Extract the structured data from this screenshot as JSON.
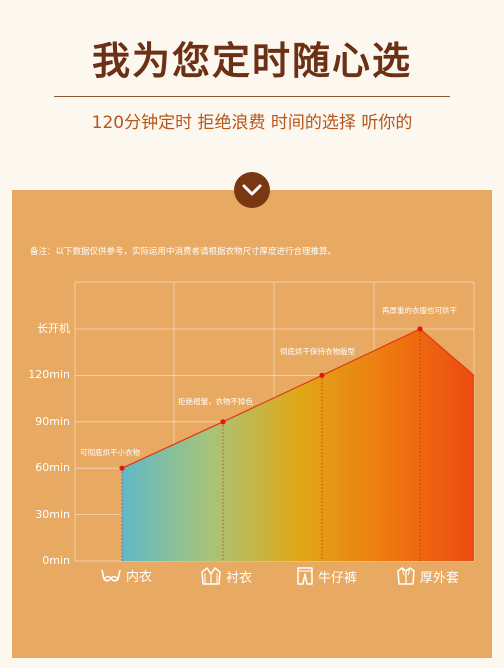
{
  "header": {
    "title": "我为您定时随心选",
    "subtitle": "120分钟定时 拒绝浪费 时间的选择 听你的"
  },
  "note": "备注：以下数据仅供参考，实际运用中消费者请根据衣物尺寸厚度进行合理推算。",
  "colors": {
    "title": "#6b3016",
    "panel": "#e8a962",
    "accent": "#e03a10"
  },
  "chart_data": {
    "type": "area",
    "categories": [
      "内衣",
      "衬衣",
      "牛仔裤",
      "厚外套"
    ],
    "category_icons": [
      "bra-icon",
      "shirt-icon",
      "jeans-icon",
      "coat-icon"
    ],
    "y_tick_labels": [
      "0min",
      "30min",
      "60min",
      "90min",
      "120min",
      "长开机"
    ],
    "values": [
      60,
      90,
      120,
      150
    ],
    "annotations": [
      "可彻底烘干小衣物",
      "拒绝褶皱，衣物不掉色",
      "彻底烘干保持衣物版型",
      "再厚重的衣服也可烘干"
    ],
    "ylim": [
      0,
      150
    ],
    "grid": true
  }
}
